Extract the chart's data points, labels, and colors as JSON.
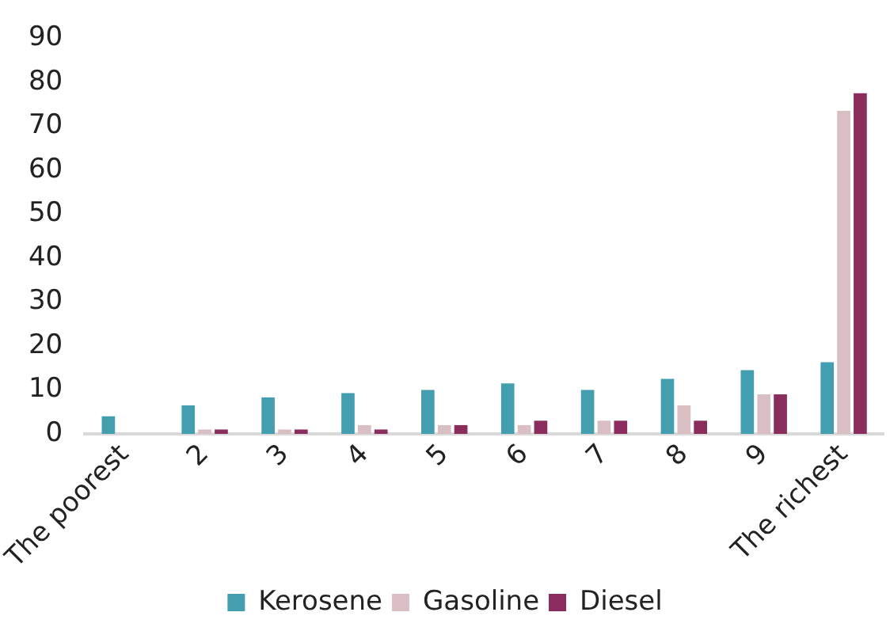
{
  "chart_data": {
    "type": "bar",
    "categories": [
      "The poorest",
      "2",
      "3",
      "4",
      "5",
      "6",
      "7",
      "8",
      "9",
      "The richest"
    ],
    "series": [
      {
        "name": "Kerosene",
        "color": "#439eb0",
        "values": [
          4,
          6.5,
          8.3,
          9.3,
          10,
          11.5,
          10,
          12.5,
          14.5,
          16.3
        ]
      },
      {
        "name": "Gasoline",
        "color": "#d9bfc4",
        "values": [
          0,
          1,
          1,
          2,
          2,
          2,
          3,
          6.5,
          9,
          73.5
        ]
      },
      {
        "name": "Diesel",
        "color": "#8a2c5c",
        "values": [
          0,
          1,
          1,
          1,
          2,
          3,
          3,
          3,
          9,
          77.5
        ]
      }
    ],
    "ylim": [
      0,
      90
    ],
    "yticks": [
      0,
      10,
      20,
      30,
      40,
      50,
      60,
      70,
      80,
      90
    ],
    "grid": false,
    "legend": "bottom"
  }
}
